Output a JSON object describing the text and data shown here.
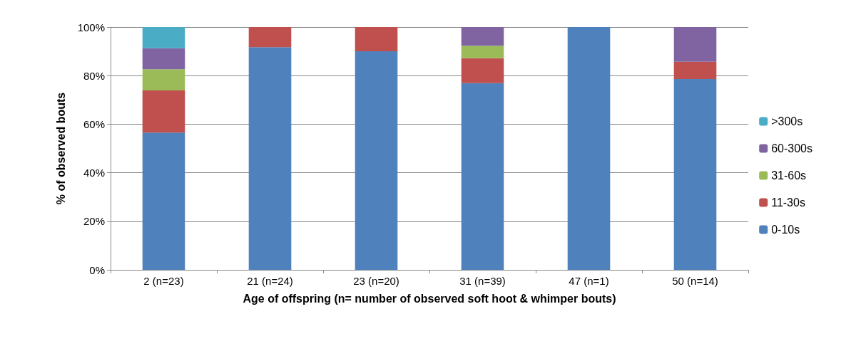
{
  "chart_data": {
    "type": "bar",
    "stacked": true,
    "xlabel": "Age of offspring (n= number of observed soft hoot & whimper bouts)",
    "ylabel": "% of observed bouts",
    "categories": [
      "2 (n=23)",
      "21 (n=24)",
      "23 (n=20)",
      "31 (n=39)",
      "47 (n=1)",
      "50 (n=14)"
    ],
    "series": [
      {
        "name": "0-10s",
        "color": "#4f81bd",
        "values": [
          56.5,
          91.7,
          90,
          76.9,
          100,
          78.6
        ]
      },
      {
        "name": "11-30s",
        "color": "#c0504d",
        "values": [
          17.4,
          8.3,
          10,
          10.3,
          0,
          7.1
        ]
      },
      {
        "name": "31-60s",
        "color": "#9bbb59",
        "values": [
          8.7,
          0,
          0,
          5.1,
          0,
          0
        ]
      },
      {
        "name": "60-300s",
        "color": "#8064a2",
        "values": [
          8.7,
          0,
          0,
          7.7,
          0,
          14.3
        ]
      },
      {
        "name": ">300s",
        "color": "#4bacc6",
        "values": [
          8.7,
          0,
          0,
          0,
          0,
          0
        ]
      }
    ],
    "ylim": [
      0,
      100
    ],
    "yticks": [
      {
        "value": 0,
        "label": "0%"
      },
      {
        "value": 20,
        "label": "20%"
      },
      {
        "value": 40,
        "label": "40%"
      },
      {
        "value": 60,
        "label": "60%"
      },
      {
        "value": 80,
        "label": "80%"
      },
      {
        "value": 100,
        "label": "100%"
      }
    ],
    "grid": "y",
    "legend": "right"
  }
}
